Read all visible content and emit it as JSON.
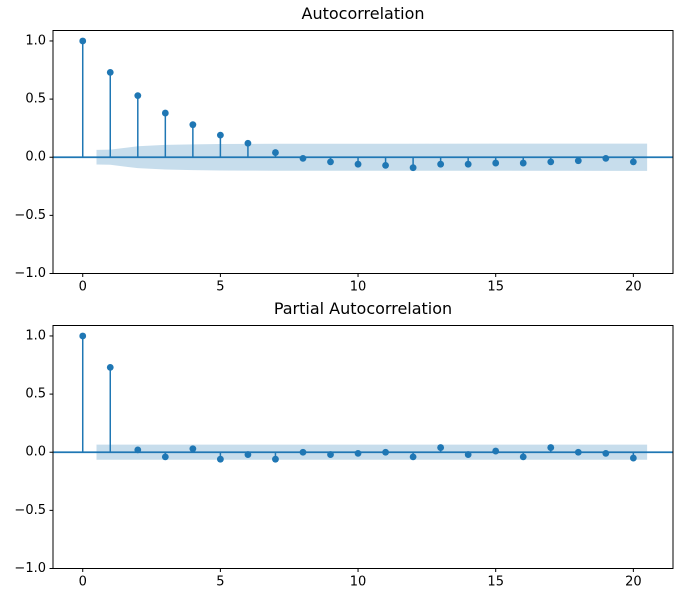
{
  "figure": {
    "background": "#ffffff"
  },
  "colors": {
    "accent": "#1f77b4",
    "band_fill": "rgba(31,119,180,0.25)",
    "spine": "#000000",
    "tick_text": "#000000"
  },
  "chart_data": [
    {
      "type": "stem",
      "title": "Autocorrelation",
      "x": [
        0,
        1,
        2,
        3,
        4,
        5,
        6,
        7,
        8,
        9,
        10,
        11,
        12,
        13,
        14,
        15,
        16,
        17,
        18,
        19,
        20
      ],
      "values": [
        1.0,
        0.73,
        0.53,
        0.38,
        0.28,
        0.19,
        0.12,
        0.04,
        -0.01,
        -0.04,
        -0.06,
        -0.07,
        -0.09,
        -0.06,
        -0.06,
        -0.05,
        -0.05,
        -0.04,
        -0.03,
        -0.01,
        -0.04
      ],
      "confidence_band": {
        "x": [
          0.5,
          1,
          2,
          3,
          4,
          5,
          6,
          7,
          20.5
        ],
        "half_widths": [
          0.063,
          0.065,
          0.094,
          0.106,
          0.111,
          0.114,
          0.115,
          0.116,
          0.117
        ]
      },
      "xlim": [
        -1.08,
        21.44
      ],
      "ylim": [
        -1.0,
        1.09
      ],
      "xticks": {
        "values": [
          0,
          5,
          10,
          15,
          20
        ],
        "labels": [
          "0",
          "5",
          "10",
          "15",
          "20"
        ]
      },
      "yticks": {
        "values": [
          1.0,
          0.5,
          0.0,
          -0.5,
          -1.0
        ],
        "labels": [
          "1.0",
          "0.5",
          "0.0",
          "−0.5",
          "−1.0"
        ]
      },
      "grid": false
    },
    {
      "type": "stem",
      "title": "Partial Autocorrelation",
      "x": [
        0,
        1,
        2,
        3,
        4,
        5,
        6,
        7,
        8,
        9,
        10,
        11,
        12,
        13,
        14,
        15,
        16,
        17,
        18,
        19,
        20
      ],
      "values": [
        1.0,
        0.73,
        0.02,
        -0.04,
        0.03,
        -0.06,
        -0.02,
        -0.06,
        0.0,
        -0.02,
        -0.01,
        0.0,
        -0.04,
        0.04,
        -0.02,
        0.01,
        -0.04,
        0.04,
        0.0,
        -0.01,
        -0.05
      ],
      "confidence_band": {
        "x": [
          0.5,
          20.5
        ],
        "half_widths": [
          0.065,
          0.065
        ]
      },
      "xlim": [
        -1.08,
        21.44
      ],
      "ylim": [
        -1.0,
        1.09
      ],
      "xticks": {
        "values": [
          0,
          5,
          10,
          15,
          20
        ],
        "labels": [
          "0",
          "5",
          "10",
          "15",
          "20"
        ]
      },
      "yticks": {
        "values": [
          1.0,
          0.5,
          0.0,
          -0.5,
          -1.0
        ],
        "labels": [
          "1.0",
          "0.5",
          "0.0",
          "−0.5",
          "−1.0"
        ]
      },
      "grid": false
    }
  ]
}
